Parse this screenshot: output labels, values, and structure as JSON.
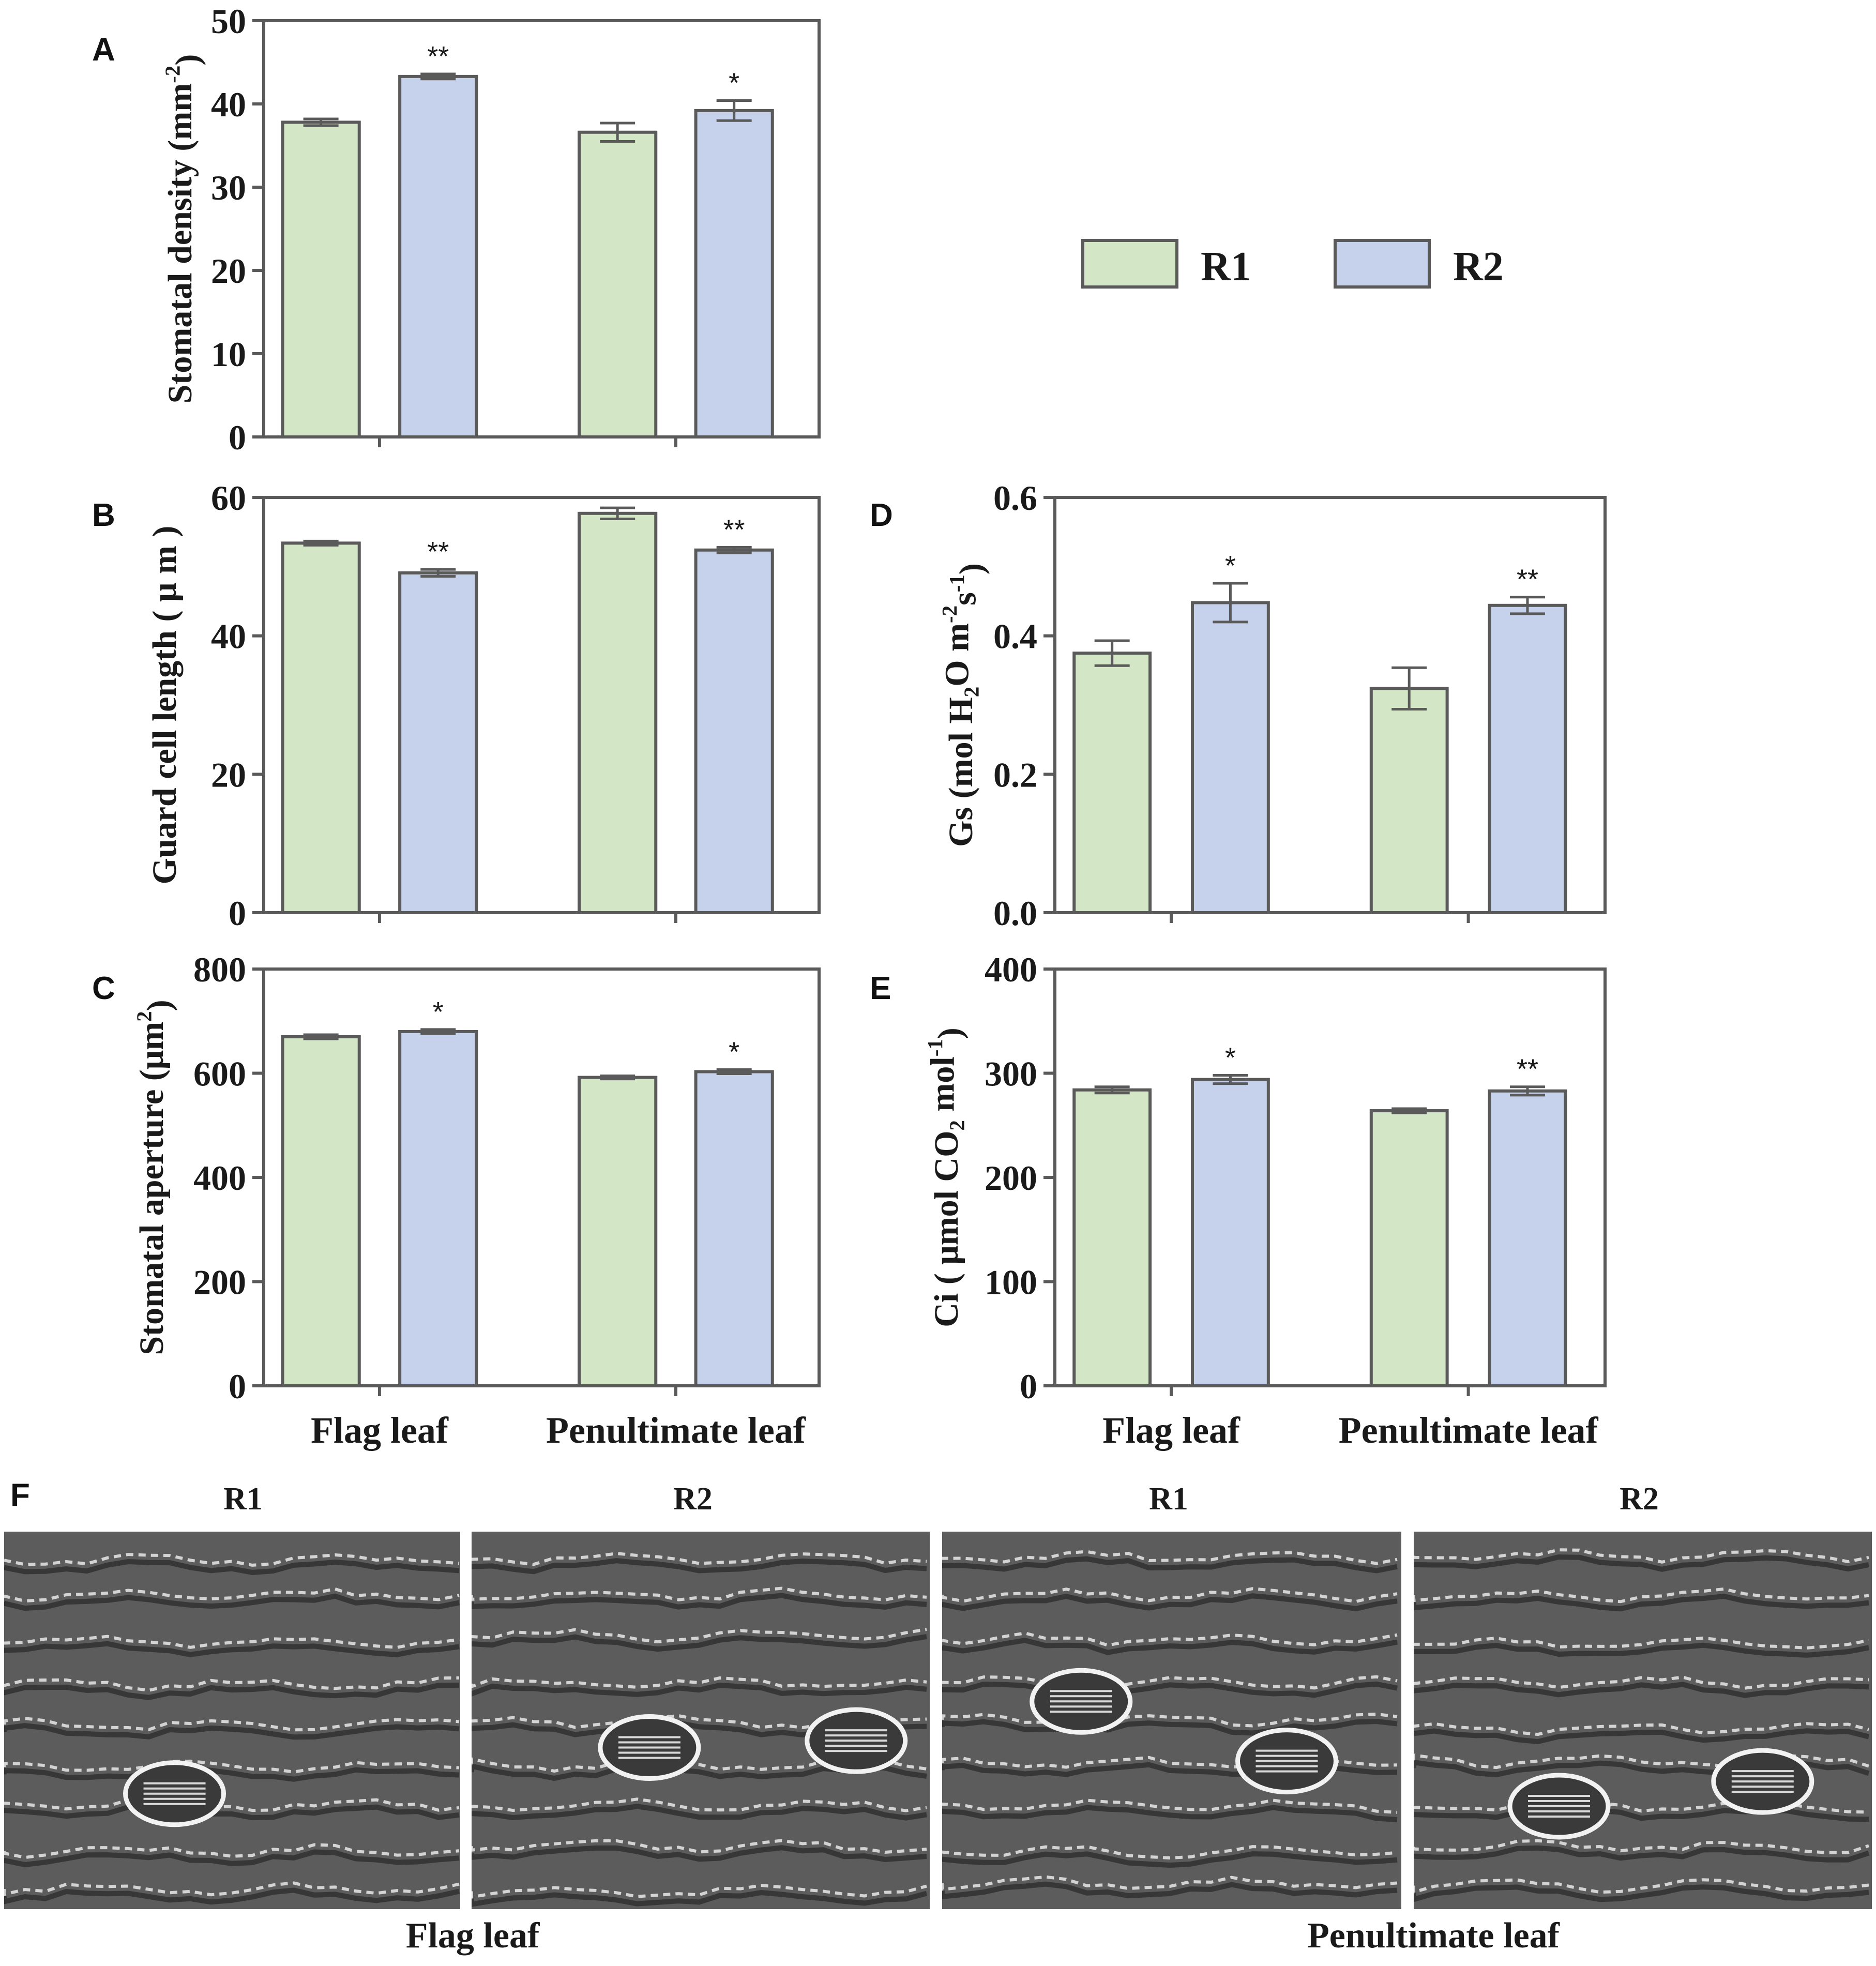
{
  "colors": {
    "r1": "#d3e6c6",
    "r2": "#c6d2ec",
    "stroke": "#5a5a5a",
    "text": "#1a1a1a"
  },
  "legend": [
    {
      "label": "R1",
      "color": "#d3e6c6"
    },
    {
      "label": "R2",
      "color": "#c6d2ec"
    }
  ],
  "chart_data": [
    {
      "panel": "A",
      "type": "bar",
      "categories": [
        "",
        ""
      ],
      "ylabel": [
        "Stomatal density (mm",
        "-2",
        ")"
      ],
      "ylim": [
        0,
        50
      ],
      "yticks": [
        "0",
        "10",
        "20",
        "30",
        "40",
        "50"
      ],
      "series": [
        {
          "name": "R1",
          "values": [
            37.8,
            36.6
          ],
          "errors": [
            0.4,
            1.1
          ],
          "sig": [
            "",
            ""
          ]
        },
        {
          "name": "R2",
          "values": [
            43.3,
            39.2
          ],
          "errors": [
            0.3,
            1.2
          ],
          "sig": [
            "**",
            "*"
          ]
        }
      ]
    },
    {
      "panel": "B",
      "type": "bar",
      "categories": [
        "",
        ""
      ],
      "ylabel": [
        "Guard cell length ( μ m )"
      ],
      "ylim": [
        0,
        60
      ],
      "yticks": [
        "0",
        "20",
        "40",
        "60"
      ],
      "series": [
        {
          "name": "R1",
          "values": [
            53.4,
            57.7
          ],
          "errors": [
            0.3,
            0.8
          ],
          "sig": [
            "",
            ""
          ]
        },
        {
          "name": "R2",
          "values": [
            49.1,
            52.4
          ],
          "errors": [
            0.5,
            0.4
          ],
          "sig": [
            "**",
            "**"
          ]
        }
      ]
    },
    {
      "panel": "C",
      "type": "bar",
      "categories": [
        "Flag leaf",
        "Penultimate leaf"
      ],
      "ylabel": [
        "Stomatal aperture (μm",
        "2",
        ")"
      ],
      "ylim": [
        0,
        800
      ],
      "yticks": [
        "0",
        "200",
        "400",
        "600",
        "800"
      ],
      "series": [
        {
          "name": "R1",
          "values": [
            670,
            592
          ],
          "errors": [
            4,
            3
          ],
          "sig": [
            "",
            ""
          ]
        },
        {
          "name": "R2",
          "values": [
            680,
            603
          ],
          "errors": [
            4,
            4
          ],
          "sig": [
            "*",
            "*"
          ]
        }
      ]
    },
    {
      "panel": "D",
      "type": "bar",
      "categories": [
        "",
        ""
      ],
      "ylabel": [
        "Gs (mol H",
        "2",
        "O m",
        "-2",
        "s",
        "-1",
        ")"
      ],
      "ylim": [
        0,
        0.6
      ],
      "yticks": [
        "0.0",
        "0.2",
        "0.4",
        "0.6"
      ],
      "series": [
        {
          "name": "R1",
          "values": [
            0.375,
            0.324
          ],
          "errors": [
            0.018,
            0.03
          ],
          "sig": [
            "",
            ""
          ]
        },
        {
          "name": "R2",
          "values": [
            0.448,
            0.444
          ],
          "errors": [
            0.028,
            0.012
          ],
          "sig": [
            "*",
            "**"
          ]
        }
      ]
    },
    {
      "panel": "E",
      "type": "bar",
      "categories": [
        "Flag leaf",
        "Penultimate leaf"
      ],
      "ylabel": [
        "Ci ( μmol CO",
        "2",
        " mol",
        "-1",
        ")"
      ],
      "ylim": [
        0,
        400
      ],
      "yticks": [
        "0",
        "100",
        "200",
        "300",
        "400"
      ],
      "series": [
        {
          "name": "R1",
          "values": [
            284,
            264
          ],
          "errors": [
            3,
            2
          ],
          "sig": [
            "",
            ""
          ]
        },
        {
          "name": "R2",
          "values": [
            294,
            283
          ],
          "errors": [
            4,
            4
          ],
          "sig": [
            "*",
            "**"
          ]
        }
      ]
    }
  ],
  "micrographs": {
    "panel": "F",
    "labels": [
      "R1",
      "R2",
      "R1",
      "R2"
    ],
    "captions": [
      "Flag leaf",
      "Penultimate leaf"
    ]
  }
}
